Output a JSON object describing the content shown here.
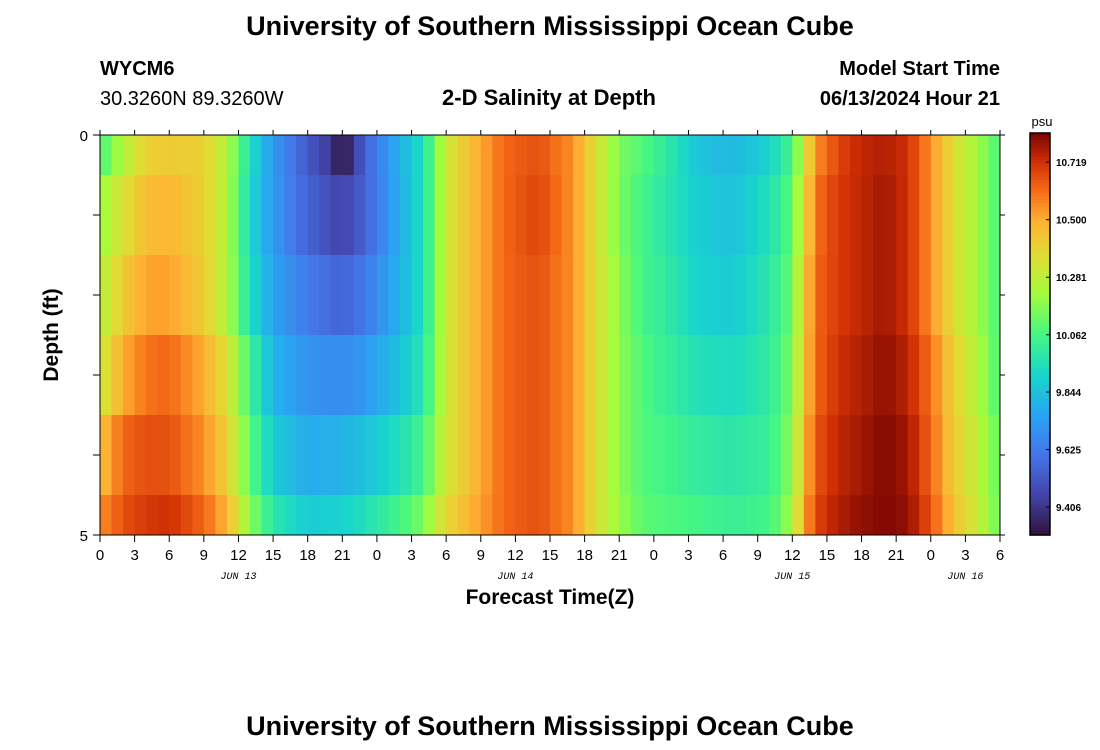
{
  "header": {
    "title": "University of Southern Mississippi Ocean Cube",
    "station_id": "WYCM6",
    "station_coords": "30.3260N  89.3260W",
    "plot_title": "2-D Salinity at Depth",
    "model_start_label": "Model Start Time",
    "model_start_value": "06/13/2024 Hour 21"
  },
  "footer": {
    "title": "University of Southern Mississippi Ocean Cube"
  },
  "chart_data": {
    "type": "heatmap",
    "title": "2-D Salinity at Depth",
    "xlabel": "Forecast Time(Z)",
    "ylabel": "Depth (ft)",
    "ylim": [
      0,
      5
    ],
    "y_tick_labels": [
      "0",
      "5"
    ],
    "x_hours_start": 0,
    "x_hours_end": 78,
    "x_tick_labels": [
      "0",
      "3",
      "6",
      "9",
      "12",
      "15",
      "18",
      "21",
      "0",
      "3",
      "6",
      "9",
      "12",
      "15",
      "18",
      "21",
      "0",
      "3",
      "6",
      "9",
      "12",
      "15",
      "18",
      "21",
      "0",
      "3",
      "6"
    ],
    "date_labels": [
      {
        "hour": 12,
        "text": "JUN 13"
      },
      {
        "hour": 36,
        "text": "JUN 14"
      },
      {
        "hour": 60,
        "text": "JUN 15"
      },
      {
        "hour": 75,
        "text": "JUN 16"
      }
    ],
    "colorbar": {
      "unit": "psu",
      "min": 9.3,
      "max": 10.83,
      "tick_labels": [
        "10.719",
        "10.500",
        "10.281",
        "10.062",
        "9.844",
        "9.625",
        "9.406"
      ]
    },
    "depth_rows": [
      {
        "name": "layer-1",
        "depth_range": [
          0,
          0.5
        ],
        "profile": [
          [
            0,
            10.06
          ],
          [
            2,
            10.25
          ],
          [
            4,
            10.4
          ],
          [
            6,
            10.42
          ],
          [
            9,
            10.4
          ],
          [
            11,
            10.25
          ],
          [
            13,
            9.95
          ],
          [
            15,
            9.72
          ],
          [
            18,
            9.52
          ],
          [
            20,
            9.42
          ],
          [
            21,
            9.3
          ],
          [
            23,
            9.55
          ],
          [
            26,
            9.8
          ],
          [
            28,
            9.95
          ],
          [
            30,
            10.3
          ],
          [
            32,
            10.45
          ],
          [
            35,
            10.62
          ],
          [
            38,
            10.66
          ],
          [
            41,
            10.55
          ],
          [
            43,
            10.35
          ],
          [
            45,
            10.15
          ],
          [
            47,
            10.08
          ],
          [
            49,
            10.0
          ],
          [
            52,
            9.85
          ],
          [
            55,
            9.82
          ],
          [
            58,
            9.9
          ],
          [
            60,
            10.06
          ],
          [
            61,
            10.3
          ],
          [
            62,
            10.55
          ],
          [
            64,
            10.68
          ],
          [
            66,
            10.74
          ],
          [
            68,
            10.76
          ],
          [
            70,
            10.72
          ],
          [
            72,
            10.55
          ],
          [
            74,
            10.36
          ],
          [
            76,
            10.22
          ],
          [
            78,
            10.06
          ]
        ]
      },
      {
        "name": "layer-2",
        "depth_range": [
          0.5,
          1.5
        ],
        "profile": [
          [
            0,
            10.2
          ],
          [
            2,
            10.35
          ],
          [
            4,
            10.46
          ],
          [
            6,
            10.48
          ],
          [
            9,
            10.4
          ],
          [
            11,
            10.25
          ],
          [
            13,
            9.92
          ],
          [
            15,
            9.72
          ],
          [
            18,
            9.55
          ],
          [
            21,
            9.45
          ],
          [
            23,
            9.55
          ],
          [
            26,
            9.78
          ],
          [
            28,
            9.95
          ],
          [
            30,
            10.3
          ],
          [
            32,
            10.45
          ],
          [
            35,
            10.62
          ],
          [
            38,
            10.68
          ],
          [
            41,
            10.55
          ],
          [
            43,
            10.35
          ],
          [
            45,
            10.15
          ],
          [
            47,
            10.05
          ],
          [
            49,
            9.98
          ],
          [
            52,
            9.88
          ],
          [
            55,
            9.85
          ],
          [
            58,
            9.95
          ],
          [
            60,
            10.1
          ],
          [
            61,
            10.35
          ],
          [
            62,
            10.6
          ],
          [
            64,
            10.7
          ],
          [
            66,
            10.74
          ],
          [
            68,
            10.78
          ],
          [
            70,
            10.72
          ],
          [
            72,
            10.55
          ],
          [
            74,
            10.36
          ],
          [
            76,
            10.22
          ],
          [
            78,
            10.06
          ]
        ]
      },
      {
        "name": "layer-3",
        "depth_range": [
          1.5,
          2.5
        ],
        "profile": [
          [
            0,
            10.25
          ],
          [
            2,
            10.42
          ],
          [
            4,
            10.52
          ],
          [
            6,
            10.52
          ],
          [
            9,
            10.42
          ],
          [
            11,
            10.25
          ],
          [
            13,
            9.95
          ],
          [
            15,
            9.75
          ],
          [
            18,
            9.62
          ],
          [
            21,
            9.55
          ],
          [
            23,
            9.62
          ],
          [
            26,
            9.8
          ],
          [
            28,
            9.95
          ],
          [
            30,
            10.3
          ],
          [
            32,
            10.45
          ],
          [
            35,
            10.62
          ],
          [
            38,
            10.66
          ],
          [
            41,
            10.55
          ],
          [
            43,
            10.35
          ],
          [
            45,
            10.18
          ],
          [
            47,
            10.05
          ],
          [
            49,
            10.0
          ],
          [
            52,
            9.9
          ],
          [
            55,
            9.88
          ],
          [
            58,
            9.98
          ],
          [
            60,
            10.12
          ],
          [
            61,
            10.4
          ],
          [
            62,
            10.62
          ],
          [
            64,
            10.7
          ],
          [
            66,
            10.74
          ],
          [
            68,
            10.78
          ],
          [
            70,
            10.72
          ],
          [
            72,
            10.55
          ],
          [
            74,
            10.36
          ],
          [
            76,
            10.22
          ],
          [
            78,
            10.06
          ]
        ]
      },
      {
        "name": "layer-4",
        "depth_range": [
          2.5,
          3.5
        ],
        "profile": [
          [
            0,
            10.3
          ],
          [
            2,
            10.5
          ],
          [
            4,
            10.6
          ],
          [
            6,
            10.62
          ],
          [
            9,
            10.5
          ],
          [
            11,
            10.35
          ],
          [
            13,
            10.05
          ],
          [
            15,
            9.8
          ],
          [
            18,
            9.7
          ],
          [
            21,
            9.68
          ],
          [
            23,
            9.72
          ],
          [
            26,
            9.85
          ],
          [
            28,
            9.98
          ],
          [
            30,
            10.3
          ],
          [
            32,
            10.45
          ],
          [
            35,
            10.62
          ],
          [
            38,
            10.66
          ],
          [
            41,
            10.55
          ],
          [
            43,
            10.35
          ],
          [
            45,
            10.18
          ],
          [
            47,
            10.08
          ],
          [
            49,
            10.02
          ],
          [
            52,
            9.95
          ],
          [
            55,
            9.93
          ],
          [
            58,
            10.0
          ],
          [
            60,
            10.15
          ],
          [
            61,
            10.42
          ],
          [
            62,
            10.62
          ],
          [
            64,
            10.72
          ],
          [
            66,
            10.76
          ],
          [
            68,
            10.8
          ],
          [
            70,
            10.75
          ],
          [
            72,
            10.6
          ],
          [
            74,
            10.4
          ],
          [
            76,
            10.25
          ],
          [
            78,
            10.06
          ]
        ]
      },
      {
        "name": "layer-5",
        "depth_range": [
          3.5,
          4.5
        ],
        "profile": [
          [
            0,
            10.45
          ],
          [
            2,
            10.62
          ],
          [
            4,
            10.66
          ],
          [
            6,
            10.66
          ],
          [
            9,
            10.55
          ],
          [
            11,
            10.4
          ],
          [
            13,
            10.1
          ],
          [
            15,
            9.88
          ],
          [
            18,
            9.78
          ],
          [
            21,
            9.8
          ],
          [
            23,
            9.85
          ],
          [
            26,
            9.95
          ],
          [
            28,
            10.05
          ],
          [
            30,
            10.32
          ],
          [
            32,
            10.45
          ],
          [
            35,
            10.62
          ],
          [
            38,
            10.66
          ],
          [
            41,
            10.55
          ],
          [
            43,
            10.35
          ],
          [
            45,
            10.18
          ],
          [
            47,
            10.08
          ],
          [
            49,
            10.05
          ],
          [
            52,
            10.0
          ],
          [
            55,
            9.98
          ],
          [
            58,
            10.02
          ],
          [
            60,
            10.18
          ],
          [
            61,
            10.45
          ],
          [
            62,
            10.65
          ],
          [
            64,
            10.74
          ],
          [
            66,
            10.78
          ],
          [
            68,
            10.82
          ],
          [
            70,
            10.78
          ],
          [
            72,
            10.62
          ],
          [
            74,
            10.42
          ],
          [
            76,
            10.28
          ],
          [
            78,
            10.1
          ]
        ]
      },
      {
        "name": "layer-6",
        "depth_range": [
          4.5,
          5
        ],
        "profile": [
          [
            0,
            10.55
          ],
          [
            2,
            10.66
          ],
          [
            4,
            10.7
          ],
          [
            6,
            10.72
          ],
          [
            9,
            10.62
          ],
          [
            11,
            10.48
          ],
          [
            13,
            10.18
          ],
          [
            15,
            9.98
          ],
          [
            18,
            9.88
          ],
          [
            21,
            9.9
          ],
          [
            23,
            9.95
          ],
          [
            26,
            10.05
          ],
          [
            28,
            10.15
          ],
          [
            30,
            10.38
          ],
          [
            32,
            10.48
          ],
          [
            35,
            10.62
          ],
          [
            38,
            10.66
          ],
          [
            41,
            10.55
          ],
          [
            43,
            10.35
          ],
          [
            45,
            10.2
          ],
          [
            47,
            10.1
          ],
          [
            49,
            10.08
          ],
          [
            52,
            10.05
          ],
          [
            55,
            10.02
          ],
          [
            58,
            10.05
          ],
          [
            60,
            10.22
          ],
          [
            61,
            10.5
          ],
          [
            62,
            10.68
          ],
          [
            64,
            10.76
          ],
          [
            66,
            10.8
          ],
          [
            68,
            10.82
          ],
          [
            70,
            10.8
          ],
          [
            72,
            10.65
          ],
          [
            74,
            10.45
          ],
          [
            76,
            10.3
          ],
          [
            78,
            10.12
          ]
        ]
      }
    ]
  }
}
